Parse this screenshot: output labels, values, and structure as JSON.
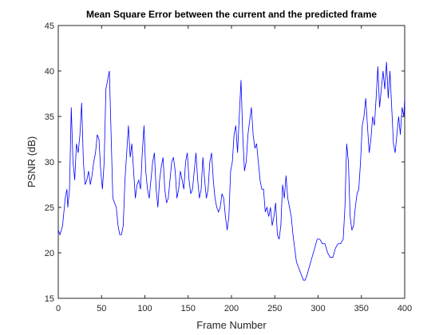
{
  "chart_data": {
    "type": "line",
    "title": "Mean Square Error between the current and the predicted frame",
    "xlabel": "Frame Number",
    "ylabel": "PSNR (dB)",
    "xlim": [
      0,
      400
    ],
    "ylim": [
      15,
      45
    ],
    "xticks": [
      0,
      50,
      100,
      150,
      200,
      250,
      300,
      350,
      400
    ],
    "yticks": [
      15,
      20,
      25,
      30,
      35,
      40,
      45
    ],
    "grid": false,
    "series": [
      {
        "color": "#0000ff",
        "x": [
          0,
          2,
          5,
          8,
          10,
          11,
          13,
          15,
          17,
          19,
          21,
          23,
          25,
          27,
          29,
          31,
          33,
          35,
          37,
          39,
          41,
          43,
          45,
          47,
          49,
          51,
          53,
          55,
          57,
          59,
          61,
          63,
          65,
          67,
          69,
          71,
          73,
          75,
          77,
          79,
          81,
          83,
          85,
          87,
          89,
          91,
          93,
          95,
          97,
          99,
          101,
          103,
          105,
          107,
          109,
          111,
          113,
          115,
          117,
          119,
          121,
          123,
          125,
          127,
          129,
          131,
          133,
          135,
          137,
          139,
          141,
          143,
          145,
          147,
          149,
          151,
          153,
          155,
          157,
          159,
          161,
          163,
          165,
          167,
          169,
          171,
          173,
          175,
          177,
          179,
          181,
          183,
          185,
          187,
          189,
          191,
          193,
          195,
          197,
          199,
          201,
          203,
          205,
          207,
          209,
          211,
          213,
          215,
          217,
          219,
          221,
          223,
          225,
          227,
          229,
          231,
          233,
          235,
          237,
          239,
          241,
          243,
          245,
          247,
          249,
          251,
          253,
          255,
          257,
          259,
          261,
          263,
          265,
          267,
          269,
          271,
          273,
          275,
          277,
          279,
          281,
          283,
          285,
          287,
          290,
          293,
          296,
          299,
          302,
          305,
          308,
          311,
          314,
          317,
          320,
          323,
          326,
          329,
          331,
          333,
          335,
          337,
          339,
          341,
          343,
          345,
          347,
          349,
          351,
          353,
          355,
          357,
          359,
          361,
          363,
          365,
          367,
          369,
          371,
          373,
          375,
          377,
          379,
          381,
          383,
          385,
          387,
          389,
          391,
          393,
          395,
          397,
          399,
          400
        ],
        "values": [
          22.5,
          22,
          23,
          26,
          27,
          25,
          27,
          36,
          30,
          28,
          32,
          31,
          33,
          36.5,
          30,
          27.5,
          28,
          29,
          27.5,
          28.5,
          30,
          31,
          33,
          32.5,
          29,
          27,
          30,
          38,
          39,
          40,
          33,
          26,
          25.5,
          25,
          23,
          22,
          22,
          23,
          28,
          31,
          34,
          30.5,
          32,
          29,
          26,
          27.5,
          28,
          27,
          31,
          34,
          29,
          27,
          26,
          28,
          30,
          31,
          27,
          25,
          28,
          29.5,
          30.5,
          27,
          25.5,
          26,
          28,
          30,
          30.5,
          29,
          26,
          27,
          29,
          28,
          27,
          30,
          31,
          28,
          26.5,
          27,
          29,
          31,
          28,
          26,
          27,
          30.5,
          28,
          26,
          27,
          30,
          31,
          28,
          26,
          25,
          24.5,
          25,
          26.5,
          26,
          24,
          22.5,
          24,
          29,
          30,
          33,
          34,
          31,
          35,
          39,
          33,
          29,
          30,
          33,
          34.5,
          36,
          33,
          31.5,
          32,
          30,
          28,
          27,
          27,
          24.5,
          25,
          24,
          25,
          23,
          24,
          25.5,
          22,
          21.5,
          23,
          27.5,
          26,
          28.5,
          26,
          25,
          24,
          22,
          20.5,
          19,
          18.5,
          18,
          17.5,
          17,
          17,
          17.5,
          18.5,
          19.5,
          20.5,
          21.5,
          21.5,
          21,
          21,
          20,
          19.5,
          19.5,
          20.5,
          21,
          21,
          21.5,
          25,
          32,
          30,
          24,
          22.5,
          23,
          25,
          26.5,
          27,
          30,
          34,
          35,
          37,
          34,
          31,
          32.5,
          35,
          34,
          37,
          40.5,
          36,
          38,
          40,
          38,
          41,
          37,
          40,
          36,
          32,
          31,
          33,
          35,
          33,
          36,
          35,
          37
        ]
      }
    ]
  }
}
